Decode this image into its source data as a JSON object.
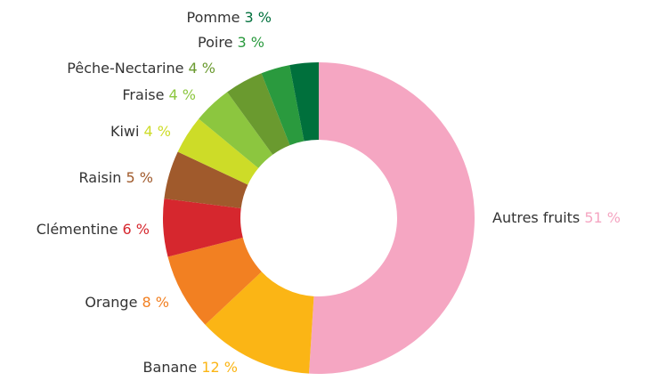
{
  "chart_data": {
    "type": "pie",
    "categories": [
      "Autres fruits",
      "Banane",
      "Orange",
      "Clémentine",
      "Raisin",
      "Kiwi",
      "Fraise",
      "Pêche-Nectarine",
      "Poire",
      "Pomme"
    ],
    "values": [
      51,
      12,
      8,
      6,
      5,
      4,
      4,
      4,
      3,
      3
    ],
    "value_labels": [
      "51 %",
      "12 %",
      "8 %",
      "6 %",
      "5 %",
      "4 %",
      "4 %",
      "4 %",
      "3 %",
      "3 %"
    ],
    "colors": [
      "#f5a6c2",
      "#fbb515",
      "#f28022",
      "#d6272e",
      "#a05a2c",
      "#cddc28",
      "#8cc63f",
      "#6a9a2f",
      "#2a9a3e",
      "#00703c"
    ],
    "donut": true
  }
}
